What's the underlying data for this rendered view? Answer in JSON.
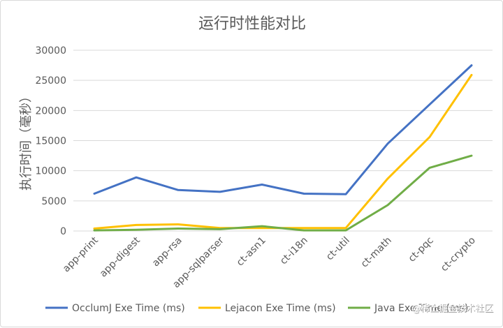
{
  "chart_data": {
    "type": "line",
    "title": "运行时性能对比",
    "ylabel": "执行时间（毫秒）",
    "xlabel": "",
    "categories": [
      "app-print",
      "app-digest",
      "app-rsa",
      "app-sqlparser",
      "ct-asn1",
      "ct-i18n",
      "ct-util",
      "ct-math",
      "ct-pqc",
      "ct-crypto"
    ],
    "ylim": [
      0,
      30000
    ],
    "yticks": [
      0,
      5000,
      10000,
      15000,
      20000,
      25000,
      30000
    ],
    "grid": true,
    "legend_position": "bottom",
    "series": [
      {
        "name": "OcclumJ Exe Time (ms)",
        "color": "#4472c4",
        "values": [
          6200,
          8900,
          6800,
          6500,
          7700,
          6200,
          6100,
          14500,
          21000,
          27500
        ]
      },
      {
        "name": "Lejacon Exe Time (ms)",
        "color": "#ffc000",
        "values": [
          400,
          1000,
          1100,
          500,
          500,
          500,
          500,
          8700,
          15600,
          25900
        ]
      },
      {
        "name": "Java Exe Time (ms)",
        "color": "#70ad47",
        "values": [
          100,
          200,
          400,
          300,
          800,
          100,
          100,
          4300,
          10500,
          12500
        ]
      }
    ]
  },
  "watermark": "@稀土掘金技术社区"
}
